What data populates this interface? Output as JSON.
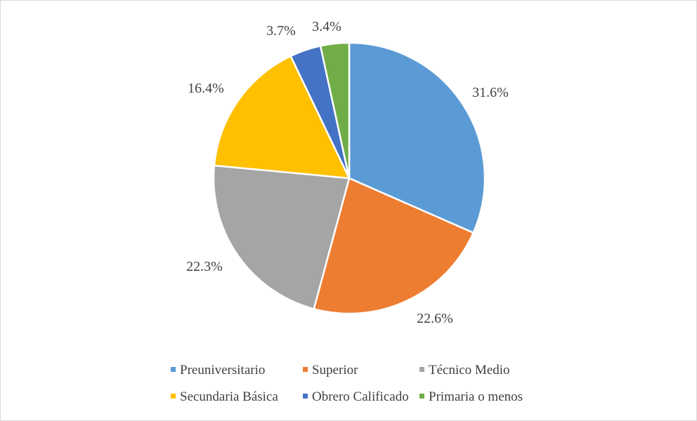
{
  "chart_data": {
    "type": "pie",
    "categories": [
      "Preuniversitario",
      "Superior",
      "Técnico Medio",
      "Secundaria Básica",
      "Obrero Calificado",
      "Primaria o menos"
    ],
    "values": [
      31.6,
      22.6,
      22.3,
      16.4,
      3.7,
      3.4
    ],
    "data_labels": [
      "31.6%",
      "22.6%",
      "22.3%",
      "16.4%",
      "3.7%",
      "3.4%"
    ],
    "colors": [
      "#5B9BD5",
      "#ED7D31",
      "#A5A5A5",
      "#FFC000",
      "#4472C4",
      "#70AD47"
    ],
    "start_angle_deg": 0,
    "direction": "clockwise",
    "legend": "bottom",
    "title": ""
  }
}
